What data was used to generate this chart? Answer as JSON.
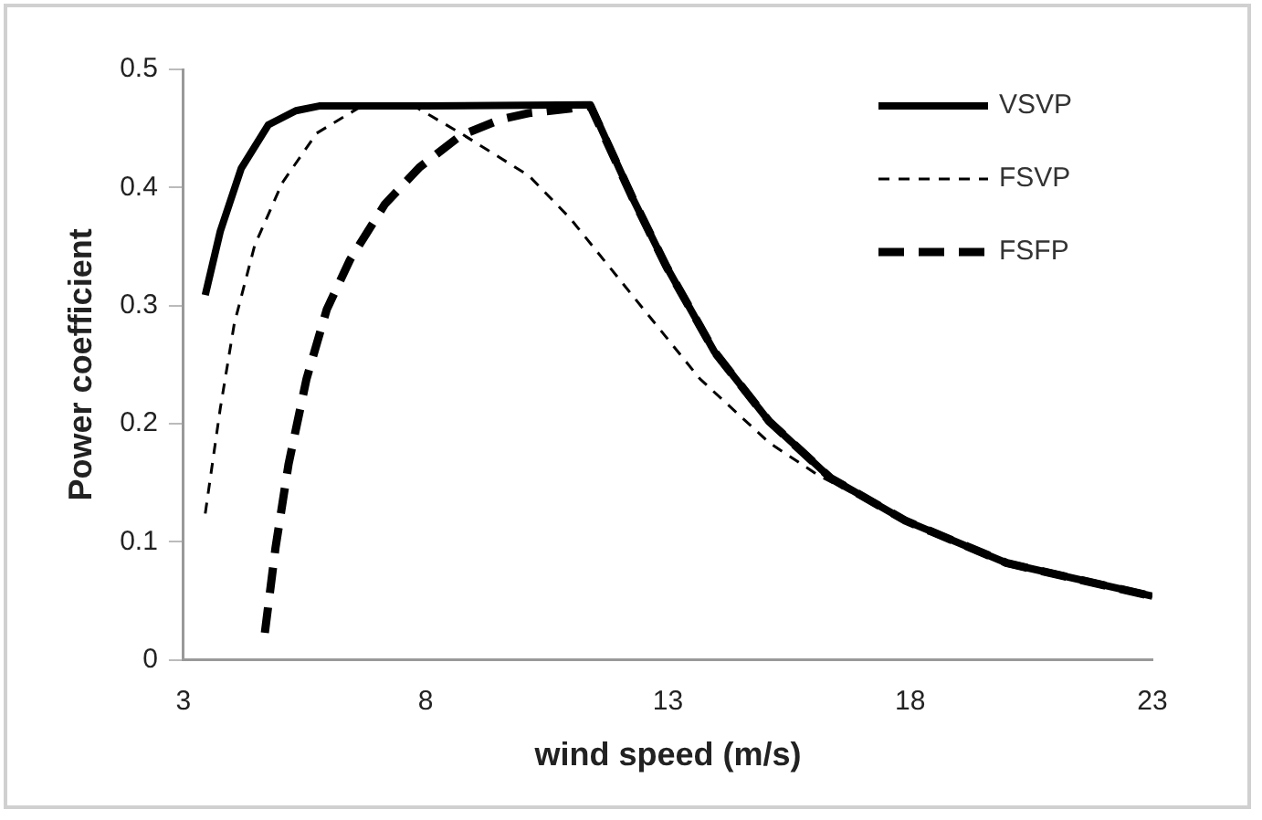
{
  "chart_data": {
    "type": "line",
    "xlabel": "wind speed (m/s)",
    "ylabel": "Power coefficient",
    "xlim": [
      3,
      23
    ],
    "xticks": [
      3,
      8,
      13,
      18,
      23
    ],
    "ylim": [
      0,
      0.5
    ],
    "yticks": [
      0,
      0.1,
      0.2,
      0.3,
      0.4,
      0.5
    ],
    "grid": false,
    "legend": "top right",
    "marker": "none",
    "series": [
      {
        "name": "VSVP",
        "color": "#000000",
        "line_style": "solid",
        "x": [
          3.45,
          3.76,
          4.19,
          4.75,
          5.32,
          5.8,
          8,
          11.4,
          12.26,
          12.97,
          13.96,
          15.09,
          16.36,
          17.9,
          20.0,
          23.0
        ],
        "values": [
          0.309,
          0.363,
          0.416,
          0.453,
          0.465,
          0.469,
          0.469,
          0.47,
          0.392,
          0.333,
          0.261,
          0.202,
          0.154,
          0.118,
          0.082,
          0.054
        ]
      },
      {
        "name": "FSVP",
        "color": "#000000",
        "line_style": "dashed",
        "x": [
          3.45,
          3.76,
          4.05,
          4.47,
          5.04,
          5.75,
          6.6,
          7.8,
          8.72,
          10.13,
          10.98,
          12.26,
          13.66,
          15.09,
          16.08,
          17.9,
          20.0,
          23.0
        ],
        "values": [
          0.124,
          0.213,
          0.285,
          0.351,
          0.404,
          0.446,
          0.467,
          0.468,
          0.446,
          0.41,
          0.374,
          0.309,
          0.238,
          0.184,
          0.157,
          0.118,
          0.082,
          0.054
        ]
      },
      {
        "name": "FSFP",
        "color": "#000000",
        "line_style": "dashed",
        "x": [
          4.68,
          4.9,
          5.17,
          5.54,
          5.96,
          6.44,
          7.16,
          7.87,
          8.72,
          9.57,
          10.13,
          11.0,
          11.4,
          12.26,
          12.97,
          13.96,
          15.09,
          16.36,
          17.9,
          20.0,
          23.0
        ],
        "values": [
          0.023,
          0.095,
          0.166,
          0.238,
          0.297,
          0.339,
          0.386,
          0.417,
          0.444,
          0.458,
          0.463,
          0.467,
          0.469,
          0.392,
          0.333,
          0.261,
          0.202,
          0.154,
          0.118,
          0.082,
          0.054
        ]
      }
    ]
  }
}
